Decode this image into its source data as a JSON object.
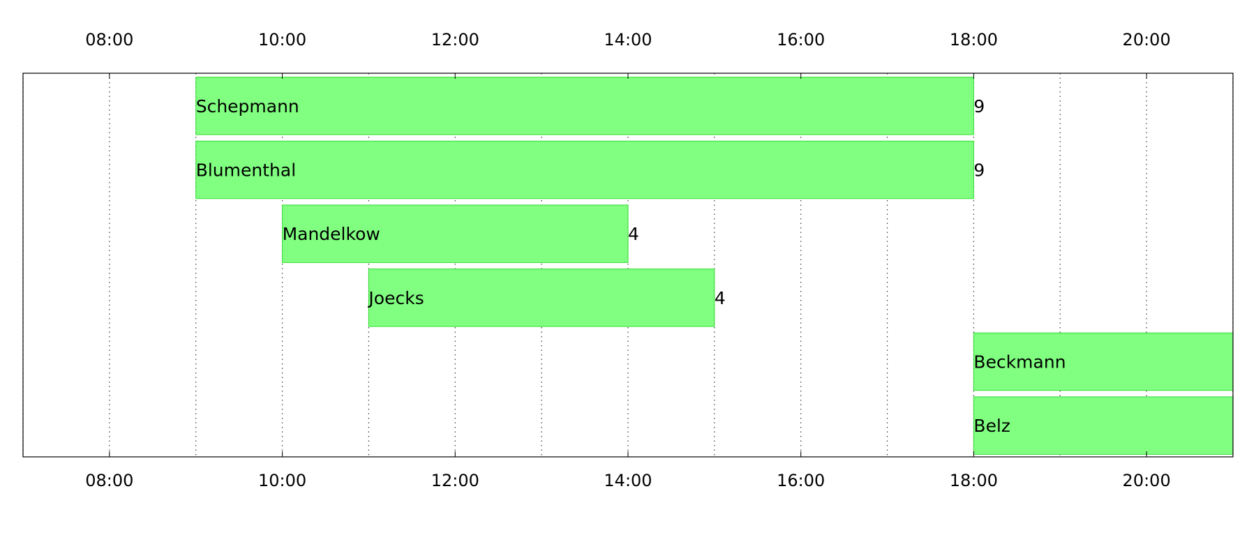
{
  "chart_data": {
    "type": "bar",
    "orientation": "horizontal",
    "title": "",
    "xlabel": "",
    "ylabel": "",
    "xlim": [
      "07:00",
      "21:00"
    ],
    "x_ticks": [
      "08:00",
      "10:00",
      "12:00",
      "14:00",
      "16:00",
      "18:00",
      "20:00"
    ],
    "x_tick_positions_top_and_bottom": true,
    "grid": "vertical dotted, hourly",
    "bar_color": "#80ff80",
    "bar_edge_color": "#33dd33",
    "bars": [
      {
        "label": "Schepmann",
        "start": "09:00",
        "end": "18:00",
        "value_label": "9"
      },
      {
        "label": "Blumenthal",
        "start": "09:00",
        "end": "18:00",
        "value_label": "9"
      },
      {
        "label": "Mandelkow",
        "start": "10:00",
        "end": "14:00",
        "value_label": "4"
      },
      {
        "label": "Joecks",
        "start": "11:00",
        "end": "15:00",
        "value_label": "4"
      },
      {
        "label": "Beckmann",
        "start": "18:00",
        "end": "21:00",
        "value_label": ""
      },
      {
        "label": "Belz",
        "start": "18:00",
        "end": "21:00",
        "value_label": ""
      }
    ]
  }
}
